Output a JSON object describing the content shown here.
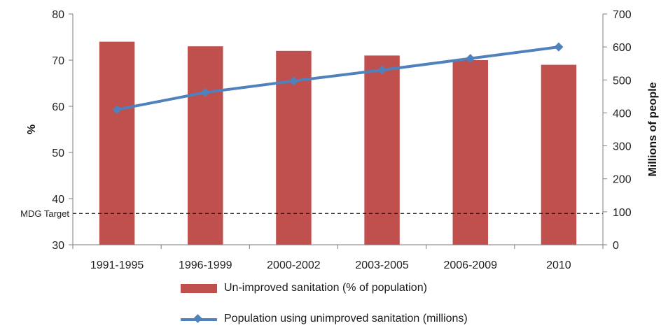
{
  "chart_data": {
    "type": "bar",
    "categories": [
      "1991-1995",
      "1996-1999",
      "2000-2002",
      "2003-2005",
      "2006-2009",
      "2010"
    ],
    "series": [
      {
        "name": "Un-improved sanitation (% of population)",
        "chart": "bar",
        "axis": "left",
        "values": [
          74,
          73,
          72,
          71,
          70,
          69
        ],
        "color": "#c0504d"
      },
      {
        "name": "Population using unimproved sanitation (millions)",
        "chart": "line",
        "axis": "right",
        "values": [
          410,
          462,
          497,
          530,
          565,
          600
        ],
        "color": "#4f81bd"
      }
    ],
    "ylabel": "%",
    "y2label": "Millions of people",
    "ylim": [
      30,
      80
    ],
    "y2lim": [
      0,
      700
    ],
    "yticks": [
      30,
      40,
      50,
      60,
      70,
      80
    ],
    "y2ticks": [
      0,
      100,
      200,
      300,
      400,
      500,
      600,
      700
    ],
    "reference_line": {
      "label": "MDG Target",
      "value": 95,
      "axis": "right",
      "style": "dashed"
    },
    "grid": false,
    "legend_position": "bottom"
  }
}
